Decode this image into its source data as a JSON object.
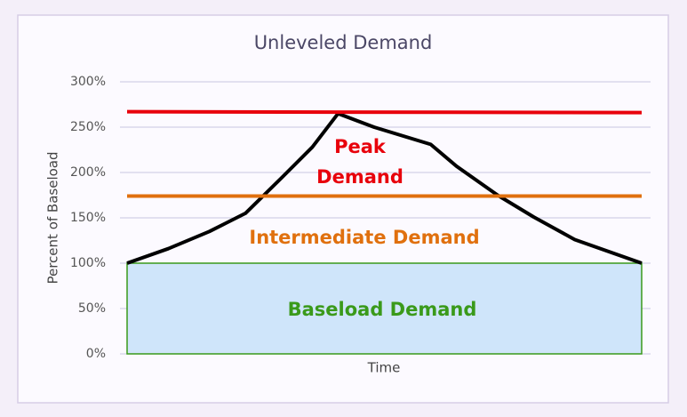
{
  "chart_data": {
    "type": "line",
    "title": "Unleveled Demand",
    "x_label": "Time",
    "y_label": "Percent of Baseload",
    "xlim": [
      0,
      100
    ],
    "ylim": [
      0,
      300
    ],
    "yticks": [
      {
        "value": 0,
        "label": "0%"
      },
      {
        "value": 50,
        "label": "50%"
      },
      {
        "value": 100,
        "label": "100%"
      },
      {
        "value": 150,
        "label": "150%"
      },
      {
        "value": 200,
        "label": "200%"
      },
      {
        "value": 250,
        "label": "250%"
      },
      {
        "value": 300,
        "label": "300%"
      }
    ],
    "grid": true,
    "series": [
      {
        "color": "#000000",
        "x": [
          0,
          8,
          16,
          23,
          30,
          36,
          41,
          48,
          59,
          64,
          72,
          79,
          87,
          100
        ],
        "values": [
          100,
          116,
          135,
          155,
          194,
          228,
          265,
          250,
          231,
          207,
          175,
          151,
          126,
          100
        ]
      },
      {
        "name": "Peak Demand",
        "color": "#e8000b",
        "x": [
          0,
          100
        ],
        "values": [
          267,
          266
        ]
      },
      {
        "name": "Intermediate Demand",
        "color": "#e0700e",
        "x": [
          0,
          100
        ],
        "values": [
          174,
          174
        ]
      },
      {
        "name": "Baseload Demand",
        "color": "#3a9a1a",
        "fill": "#cfe5fa",
        "area": true,
        "x": [
          0,
          100
        ],
        "values": [
          100,
          100
        ]
      }
    ]
  }
}
